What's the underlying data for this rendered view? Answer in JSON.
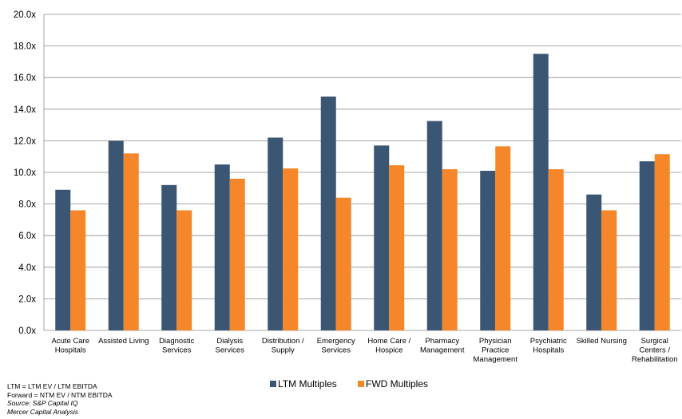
{
  "chart_data": {
    "type": "bar",
    "categories": [
      [
        "Acute Care",
        "Hospitals"
      ],
      [
        "Assisted Living"
      ],
      [
        "Diagnostic",
        "Services"
      ],
      [
        "Dialysis",
        "Services"
      ],
      [
        "Distribution /",
        "Supply"
      ],
      [
        "Emergency",
        "Services"
      ],
      [
        "Home Care /",
        "Hospice"
      ],
      [
        "Pharmacy",
        "Management"
      ],
      [
        "Physician",
        "Practice",
        "Management"
      ],
      [
        "Psychiatric",
        "Hospitals"
      ],
      [
        "Skilled Nursing"
      ],
      [
        "Surgical",
        "Centers /",
        "Rehabilitation"
      ]
    ],
    "series": [
      {
        "name": "LTM Multiples",
        "color": "#3a5673",
        "values": [
          8.9,
          12.0,
          9.2,
          10.5,
          12.2,
          14.8,
          11.7,
          13.25,
          10.1,
          17.5,
          8.6,
          10.7
        ]
      },
      {
        "name": "FWD Multiples",
        "color": "#f5872a",
        "values": [
          7.6,
          11.2,
          7.6,
          9.6,
          10.25,
          8.4,
          10.45,
          10.2,
          11.65,
          10.2,
          7.6,
          11.15
        ]
      }
    ],
    "yticks": [
      "0.0x",
      "2.0x",
      "4.0x",
      "6.0x",
      "8.0x",
      "10.0x",
      "12.0x",
      "14.0x",
      "16.0x",
      "18.0x",
      "20.0x"
    ],
    "ylim": [
      0,
      20
    ],
    "grid": true,
    "legend_position": "bottom"
  },
  "footnotes": {
    "line1": "LTM = LTM EV / LTM EBITDA",
    "line2": "Forward =  NTM EV / NTM EBITDA",
    "source": "Source: S&P Capital IQ",
    "analysis": "Mercer Capital Analysis"
  }
}
